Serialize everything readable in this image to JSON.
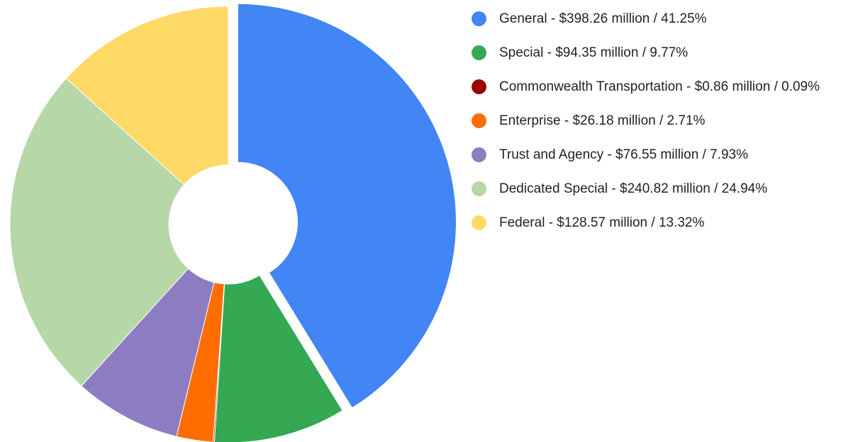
{
  "chart_data": {
    "type": "pie",
    "categories": [
      "General - $398.26 million / 41.25%",
      "Special - $94.35 million / 9.77%",
      "Commonwealth Transportation - $0.86 million / 0.09%",
      "Enterprise - $26.18 million / 2.71%",
      "Trust and Agency - $76.55 million / 7.93%",
      "Dedicated Special - $240.82 million / 24.94%",
      "Federal - $128.57 million / 13.32%"
    ],
    "values": [
      398.26,
      94.35,
      0.86,
      26.18,
      76.55,
      240.82,
      128.57
    ],
    "colors": [
      "#4285f4",
      "#34a853",
      "#990000",
      "#ff6d01",
      "#8e7cc3",
      "#b6d7a8",
      "#ffd966"
    ],
    "exploded": [
      true,
      false,
      false,
      false,
      false,
      false,
      false
    ],
    "legend": "right"
  }
}
